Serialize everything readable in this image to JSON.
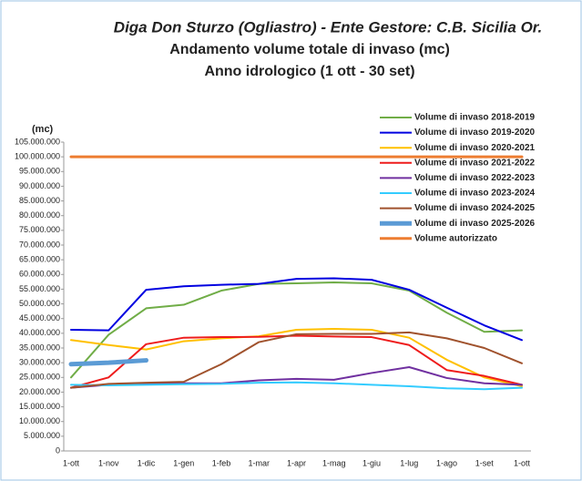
{
  "chart_data": {
    "type": "line",
    "title": "Diga Don Sturzo (Ogliastro) - Ente Gestore: C.B. Sicilia Or.",
    "subtitle": "Andamento volume totale di invaso (mc)",
    "subtitle2": "Anno idrologico (1 ott - 30 set)",
    "ylabel": "(mc)",
    "legend": "upper right",
    "grid": false,
    "categories": [
      "1-ott",
      "1-nov",
      "1-dic",
      "1-gen",
      "1-feb",
      "1-mar",
      "1-apr",
      "1-mag",
      "1-giu",
      "1-lug",
      "1-ago",
      "1-set",
      "1-ott"
    ],
    "ylim": [
      0,
      105000000
    ],
    "yticks": [
      {
        "value": 0,
        "label": "0"
      },
      {
        "value": 5000000,
        "label": "5.000.000"
      },
      {
        "value": 10000000,
        "label": "10.000.000"
      },
      {
        "value": 15000000,
        "label": "15.000.000"
      },
      {
        "value": 20000000,
        "label": "20.000.000"
      },
      {
        "value": 25000000,
        "label": "25.000.000"
      },
      {
        "value": 30000000,
        "label": "30.000.000"
      },
      {
        "value": 35000000,
        "label": "35.000.000"
      },
      {
        "value": 40000000,
        "label": "40.000.000"
      },
      {
        "value": 45000000,
        "label": "45.000.000"
      },
      {
        "value": 50000000,
        "label": "50.000.000"
      },
      {
        "value": 55000000,
        "label": "55.000.000"
      },
      {
        "value": 60000000,
        "label": "60.000.000"
      },
      {
        "value": 65000000,
        "label": "65.000.000"
      },
      {
        "value": 70000000,
        "label": "70.000.000"
      },
      {
        "value": 75000000,
        "label": "75.000.000"
      },
      {
        "value": 80000000,
        "label": "80.000.000"
      },
      {
        "value": 85000000,
        "label": "85.000.000"
      },
      {
        "value": 90000000,
        "label": "90.000.000"
      },
      {
        "value": 95000000,
        "label": "95.000.000"
      },
      {
        "value": 100000000,
        "label": "100.000.000"
      },
      {
        "value": 105000000,
        "label": "105.000.000"
      }
    ],
    "series": [
      {
        "name": "Volume di invaso 2018-2019",
        "color": "#70ad47",
        "width": 2,
        "values": [
          25000000,
          39500000,
          48500000,
          49700000,
          54500000,
          56800000,
          57000000,
          57300000,
          57000000,
          54500000,
          47000000,
          40500000,
          41000000
        ]
      },
      {
        "name": "Volume di invaso 2019-2020",
        "color": "#0000e0",
        "width": 2,
        "values": [
          41200000,
          41000000,
          54800000,
          56000000,
          56500000,
          56800000,
          58500000,
          58700000,
          58200000,
          54800000,
          48700000,
          42700000,
          37700000
        ]
      },
      {
        "name": "Volume di invaso 2020-2021",
        "color": "#ffc000",
        "width": 2,
        "values": [
          37700000,
          36000000,
          34500000,
          37300000,
          38300000,
          39000000,
          41200000,
          41500000,
          41200000,
          38500000,
          31000000,
          25000000,
          22000000
        ]
      },
      {
        "name": "Volume di invaso 2021-2022",
        "color": "#ee1c1c",
        "width": 2,
        "values": [
          21500000,
          25000000,
          36300000,
          38500000,
          38700000,
          38800000,
          39200000,
          38900000,
          38700000,
          36000000,
          27500000,
          25500000,
          22500000
        ]
      },
      {
        "name": "Volume di invaso 2022-2023",
        "color": "#7030a0",
        "width": 2,
        "values": [
          21500000,
          22500000,
          22800000,
          23000000,
          23000000,
          24000000,
          24500000,
          24200000,
          26500000,
          28500000,
          24800000,
          23000000,
          22500000
        ]
      },
      {
        "name": "Volume di invaso 2023-2024",
        "color": "#33ccff",
        "width": 2,
        "values": [
          22500000,
          22300000,
          22500000,
          22700000,
          22800000,
          23200000,
          23300000,
          23000000,
          22500000,
          22000000,
          21300000,
          21000000,
          21500000
        ]
      },
      {
        "name": "Volume di invaso 2024-2025",
        "color": "#a0522d",
        "width": 2,
        "values": [
          21500000,
          22800000,
          23200000,
          23500000,
          29500000,
          37000000,
          39700000,
          39800000,
          39800000,
          40300000,
          38300000,
          35000000,
          29800000
        ]
      },
      {
        "name": "Volume di invaso 2025-2026",
        "color": "#5b9bd5",
        "width": 5,
        "values": [
          29500000,
          30000000,
          30800000,
          null,
          null,
          null,
          null,
          null,
          null,
          null,
          null,
          null,
          null
        ]
      },
      {
        "name": "Volume autorizzato",
        "color": "#ed7d31",
        "width": 3,
        "values": [
          100000000,
          100000000,
          100000000,
          100000000,
          100000000,
          100000000,
          100000000,
          100000000,
          100000000,
          100000000,
          100000000,
          100000000,
          100000000
        ]
      }
    ]
  }
}
